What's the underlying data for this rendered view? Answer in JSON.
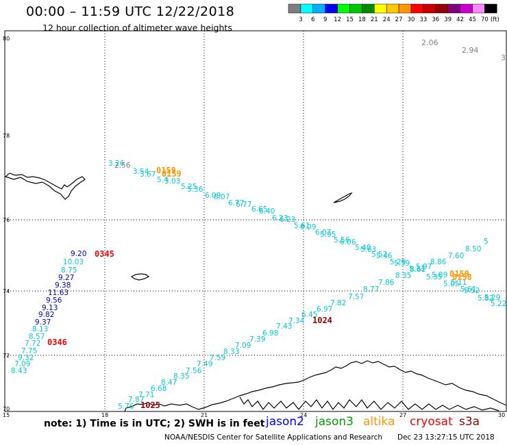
{
  "header": {
    "title": "00:00 – 11:59 UTC 12/22/2018",
    "subtitle": "12 hour collection of altimeter wave heights"
  },
  "legend": {
    "colors": [
      "#7f7f7f",
      "#00ffff",
      "#00b0ff",
      "#0000ff",
      "#00ff00",
      "#00c800",
      "#008c00",
      "#ffff00",
      "#ffc800",
      "#ff9600",
      "#ff0000",
      "#c80000",
      "#960000",
      "#800080",
      "#cc00cc",
      "#ff88ff",
      "#000000"
    ],
    "labels": [
      "3",
      "6",
      "9",
      "12",
      "15",
      "18",
      "21",
      "24",
      "27",
      "30",
      "33",
      "36",
      "39",
      "42",
      "45",
      "70"
    ],
    "unit": "(ft)"
  },
  "map": {
    "lat_labels": [
      "80",
      "78",
      "76",
      "74",
      "72",
      "70"
    ],
    "lon_labels": [
      "15",
      "18",
      "21",
      "24",
      "27",
      "30"
    ]
  },
  "tracks": {
    "jason2": [
      "9.20",
      "10.03",
      "8.75",
      "9.27",
      "9.38",
      "11.63",
      "9.56",
      "9.13",
      "9.82",
      "9.37",
      "8.13",
      "8.57",
      "7.72",
      "7.75",
      "9.32",
      "7.09",
      "8.43"
    ],
    "cryosat_a": [
      "3.26",
      "2.56",
      "3.54",
      "3.67",
      "5.4",
      "3.03",
      "5.25",
      "5.36",
      "6.09",
      "6.07",
      "6.77",
      "6.77",
      "6.65",
      "6.40",
      "6.23",
      "6.23",
      "5.61",
      "6.09",
      "6.07",
      "5.95",
      "5.56",
      "6.06",
      "5.40",
      "5.63",
      "5.52",
      "5.46",
      "5.29",
      "5.59",
      "5.33",
      "5.97",
      "5.35",
      "5.89",
      "5.05",
      "5.11",
      "5.61",
      "5.52",
      "5.82",
      "5.29",
      "5.22"
    ],
    "cryosat_b": [
      "5.76",
      "7.87",
      "7.71",
      "6.68",
      "8.47",
      "8.35",
      "7.56",
      "7.49",
      "7.59",
      "8.33",
      "7.09",
      "7.39",
      "6.98",
      "7.43",
      "7.34",
      "6.45",
      "6.97",
      "7.82",
      "7.57",
      "8.77",
      "7.86",
      "8.35",
      "8.61",
      "8.86",
      "7.60",
      "8.50",
      "5"
    ],
    "grey": [
      "2.06",
      "2.94",
      "3."
    ]
  },
  "times": {
    "t0345": "0345",
    "t0346": "0346",
    "t1024": "1024",
    "t1025": "1025",
    "t0159": "0159",
    "t0159b": "0159",
    "t0159c": "0159",
    "t0158": "0158"
  },
  "footer": {
    "note": "note: 1) Time is in UTC; 2) SWH is in feet",
    "satellites": [
      {
        "name": "jason2",
        "color": "#0000ff"
      },
      {
        "name": "jason3",
        "color": "#00a000"
      },
      {
        "name": "altika",
        "color": "#ff9600"
      },
      {
        "name": "cryosat",
        "color": "#ff0000"
      },
      {
        "name": "s3a",
        "color": "#960000"
      }
    ],
    "credit": "NOAA/NESDIS Center for Satellite Applications and Research",
    "date": "Dec 23 13:27:15 UTC 2018"
  }
}
